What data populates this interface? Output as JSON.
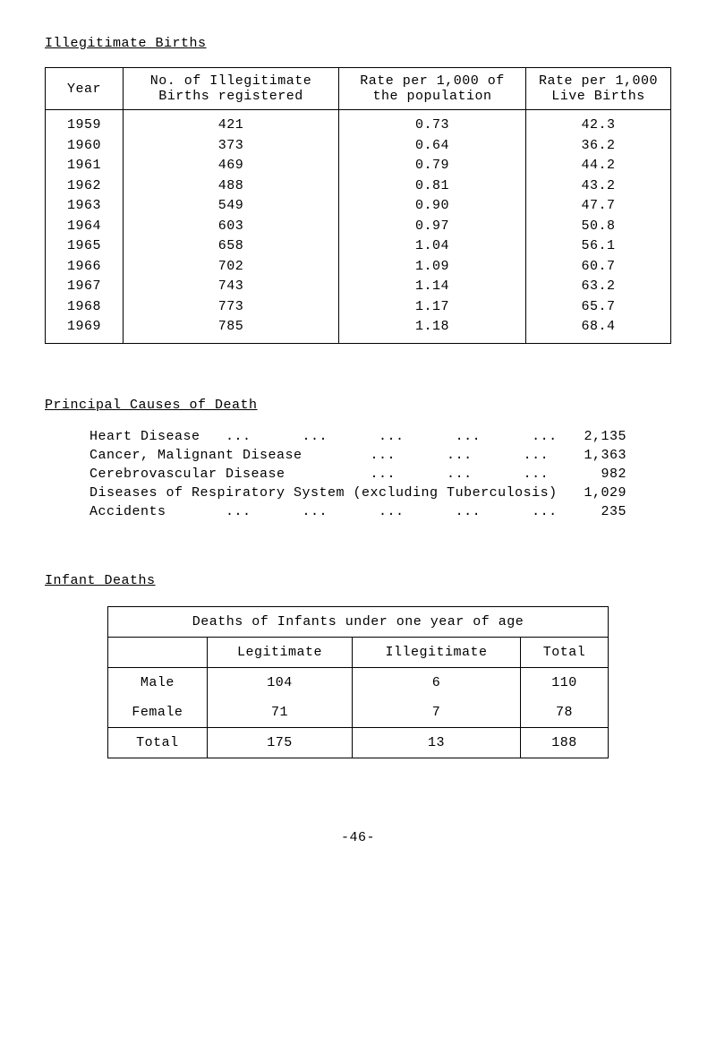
{
  "sections": {
    "illegitimate_title": "Illegitimate Births",
    "causes_title": "Principal Causes of Death",
    "infant_title": "Infant Deaths"
  },
  "births_table": {
    "headers": {
      "year": "Year",
      "num": "No. of Illegitimate Births registered",
      "rate_pop": "Rate per 1,000 of the population",
      "rate_live": "Rate per 1,000 Live Births"
    },
    "rows": [
      {
        "year": "1959",
        "num": "421",
        "rate_pop": "0.73",
        "rate_live": "42.3"
      },
      {
        "year": "1960",
        "num": "373",
        "rate_pop": "0.64",
        "rate_live": "36.2"
      },
      {
        "year": "1961",
        "num": "469",
        "rate_pop": "0.79",
        "rate_live": "44.2"
      },
      {
        "year": "1962",
        "num": "488",
        "rate_pop": "0.81",
        "rate_live": "43.2"
      },
      {
        "year": "1963",
        "num": "549",
        "rate_pop": "0.90",
        "rate_live": "47.7"
      },
      {
        "year": "1964",
        "num": "603",
        "rate_pop": "0.97",
        "rate_live": "50.8"
      },
      {
        "year": "1965",
        "num": "658",
        "rate_pop": "1.04",
        "rate_live": "56.1"
      },
      {
        "year": "1966",
        "num": "702",
        "rate_pop": "1.09",
        "rate_live": "60.7"
      },
      {
        "year": "1967",
        "num": "743",
        "rate_pop": "1.14",
        "rate_live": "63.2"
      },
      {
        "year": "1968",
        "num": "773",
        "rate_pop": "1.17",
        "rate_live": "65.7"
      },
      {
        "year": "1969",
        "num": "785",
        "rate_pop": "1.18",
        "rate_live": "68.4"
      }
    ]
  },
  "causes": [
    {
      "label": "Heart Disease   ...      ...      ...      ...      ...",
      "value": "2,135"
    },
    {
      "label": "Cancer, Malignant Disease        ...      ...      ...",
      "value": "1,363"
    },
    {
      "label": "Cerebrovascular Disease          ...      ...      ...",
      "value": "982"
    },
    {
      "label": "Diseases of Respiratory System (excluding Tuberculosis)",
      "value": "1,029"
    },
    {
      "label": "Accidents       ...      ...      ...      ...      ...",
      "value": "235"
    }
  ],
  "infant_table": {
    "title": "Deaths of Infants under one year of age",
    "headers": {
      "legit": "Legitimate",
      "illegit": "Illegitimate",
      "total": "Total"
    },
    "rows": [
      {
        "label": "Male",
        "legit": "104",
        "illegit": "6",
        "total": "110"
      },
      {
        "label": "Female",
        "legit": "71",
        "illegit": "7",
        "total": "78"
      },
      {
        "label": "Total",
        "legit": "175",
        "illegit": "13",
        "total": "188"
      }
    ]
  },
  "page_number": "-46-"
}
